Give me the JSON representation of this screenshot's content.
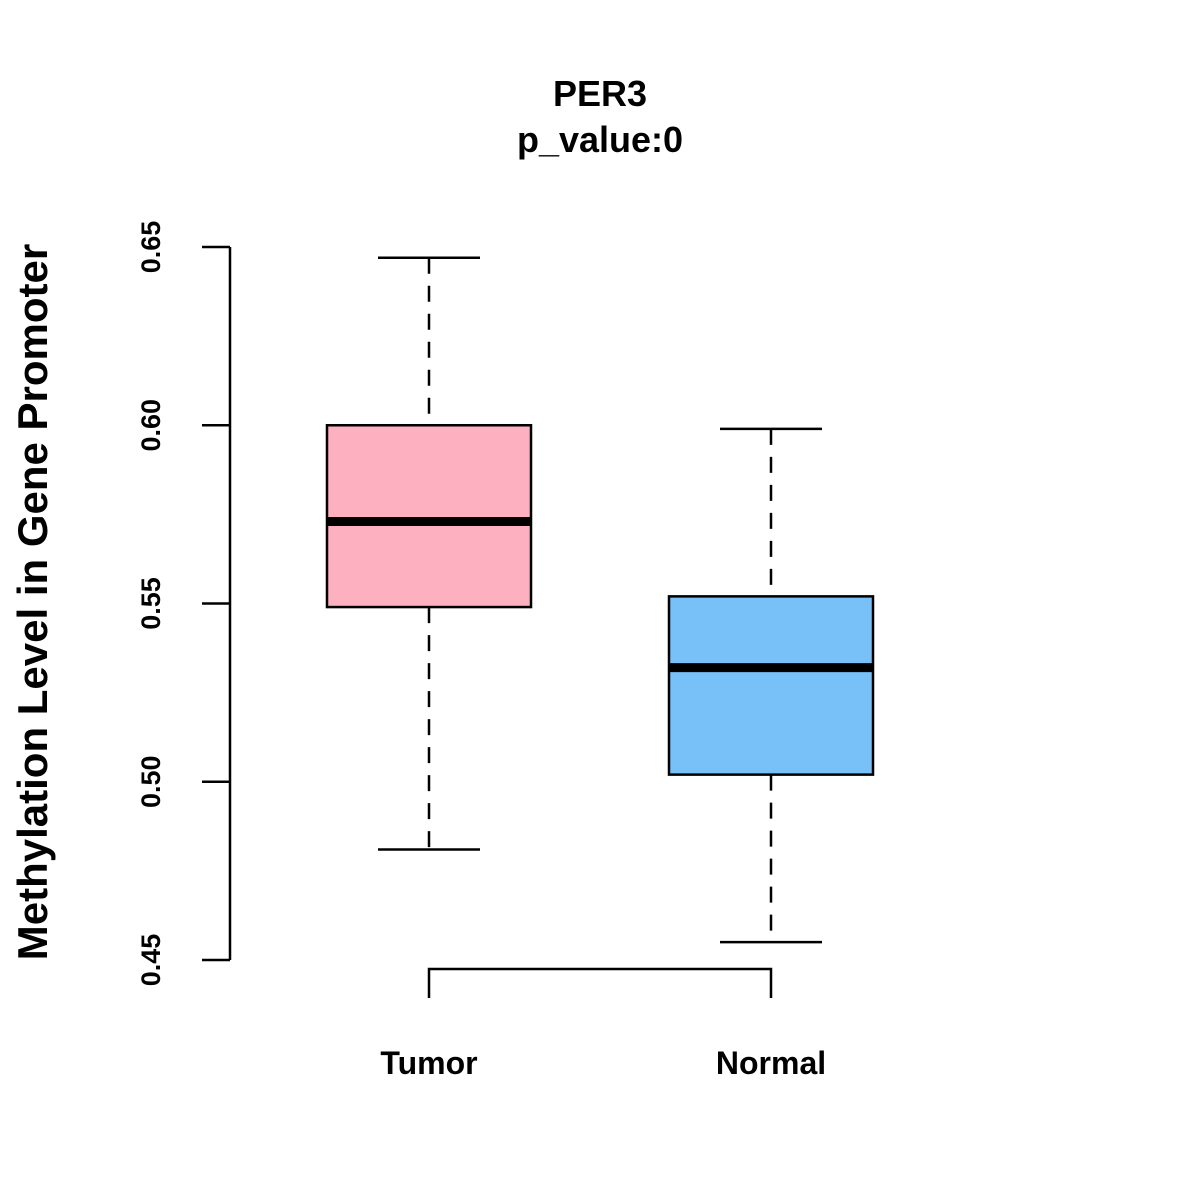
{
  "chart_data": {
    "type": "boxplot",
    "title": "PER3",
    "subtitle": "p_value:0",
    "xlabel": "",
    "ylabel": "Methylation Level in Gene Promoter",
    "ylim": [
      0.45,
      0.65
    ],
    "yticks": [
      0.45,
      0.5,
      0.55,
      0.6,
      0.65
    ],
    "ytick_labels": [
      "0.45",
      "0.50",
      "0.55",
      "0.60",
      "0.65"
    ],
    "grid": false,
    "categories": [
      "Tumor",
      "Normal"
    ],
    "boxes": [
      {
        "name": "Tumor",
        "whisker_low": 0.481,
        "q1": 0.549,
        "median": 0.573,
        "q3": 0.6,
        "whisker_high": 0.647,
        "color": "#FDB0C0"
      },
      {
        "name": "Normal",
        "whisker_low": 0.455,
        "q1": 0.502,
        "median": 0.532,
        "q3": 0.552,
        "whisker_high": 0.599,
        "color": "#78C0F8"
      }
    ],
    "significance_bracket": {
      "from": "Tumor",
      "to": "Normal",
      "label": ""
    }
  }
}
